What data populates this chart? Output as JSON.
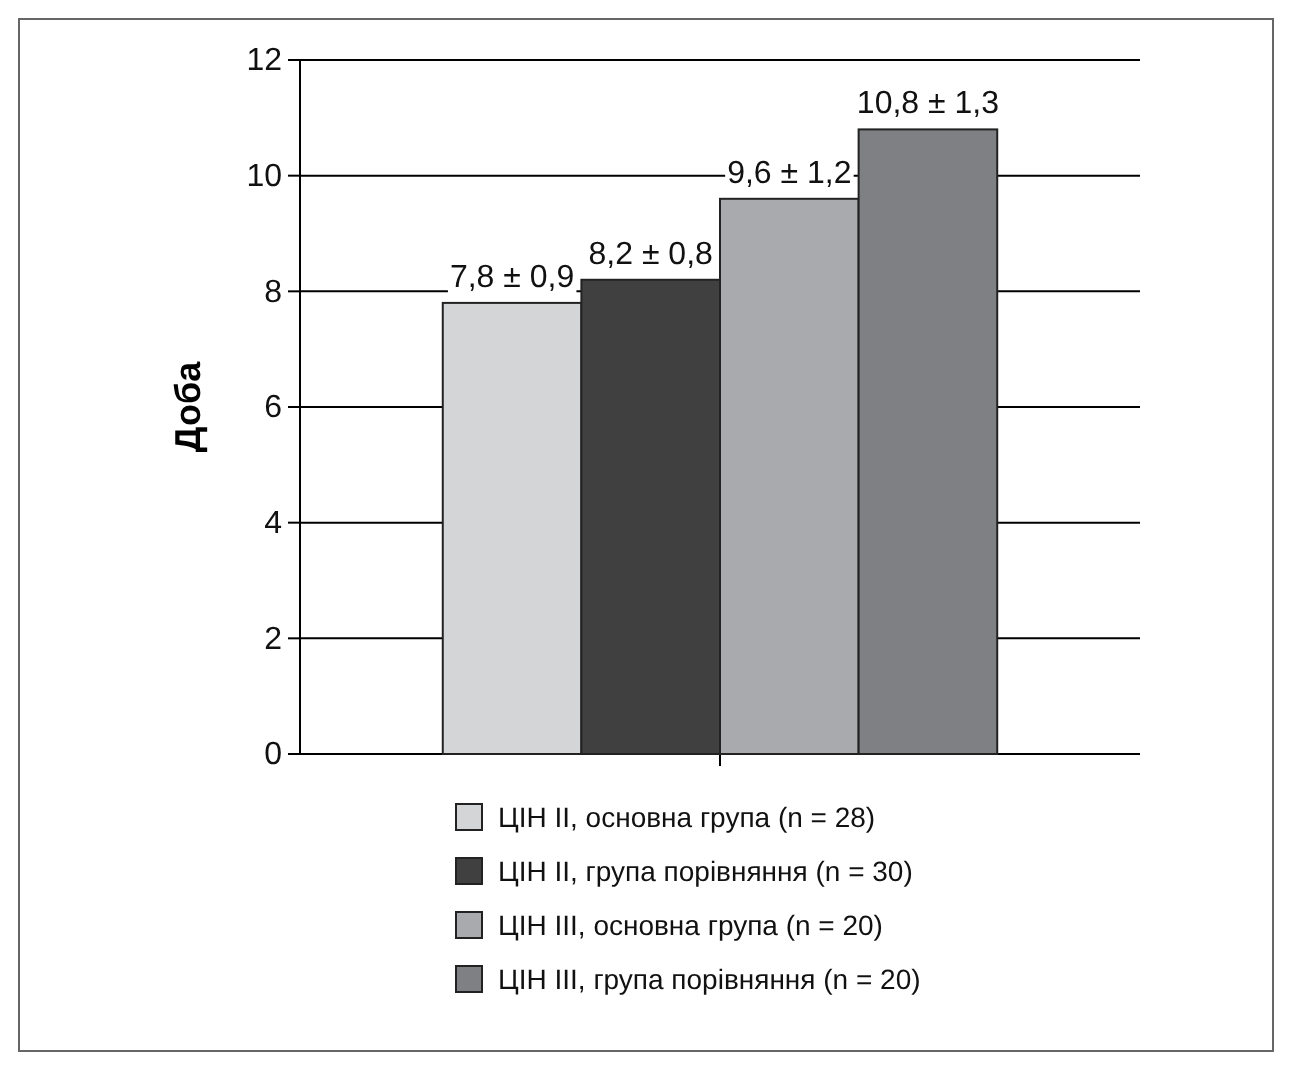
{
  "chart_data": {
    "type": "bar",
    "ylabel": "Доба",
    "categories": [
      null
    ],
    "series": [
      {
        "name": "ЦІН II, основна група (n = 28)",
        "color": "#d4d5d7",
        "values": [
          7.8
        ],
        "value_labels": [
          "7,8 ± 0,9"
        ]
      },
      {
        "name": "ЦІН II, група порівняння (n = 30)",
        "color": "#404040",
        "values": [
          8.2
        ],
        "value_labels": [
          "8,2 ± 0,8"
        ]
      },
      {
        "name": "ЦІН III, основна група (n = 20)",
        "color": "#a9aaad",
        "values": [
          9.6
        ],
        "value_labels": [
          "9,6 ± 1,2"
        ]
      },
      {
        "name": "ЦІН III, група порівняння (n = 20)",
        "color": "#7f8083",
        "values": [
          10.8
        ],
        "value_labels": [
          "10,8 ± 1,3"
        ]
      }
    ],
    "ylim": [
      0,
      12
    ],
    "yticks": [
      0,
      2,
      4,
      6,
      8,
      10,
      12
    ],
    "grid": "y",
    "legend": "bottom"
  }
}
